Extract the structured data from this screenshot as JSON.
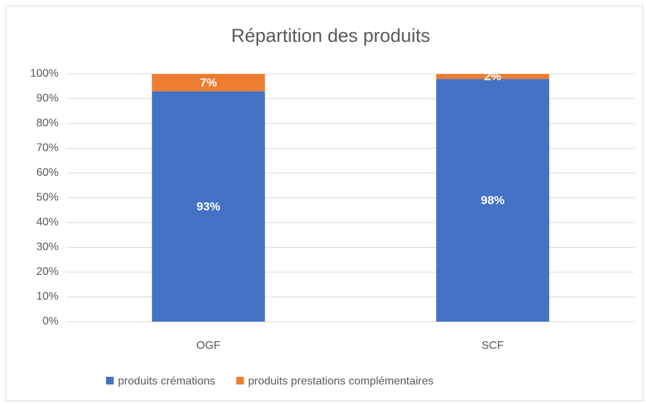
{
  "chart_data": {
    "type": "stacked_bar",
    "title": "Répartition des produits",
    "categories": [
      "OGF",
      "SCF"
    ],
    "series": [
      {
        "name": "produits crémations",
        "color": "#4472c4",
        "values": [
          93,
          98
        ],
        "value_labels": [
          "93%",
          "98%"
        ]
      },
      {
        "name": "produits prestations complémentaires",
        "color": "#ed7d31",
        "values": [
          7,
          2
        ],
        "value_labels": [
          "7%",
          "2%"
        ]
      }
    ],
    "ylim": [
      0,
      100
    ],
    "yticks": [
      {
        "value": 0,
        "label": "0%"
      },
      {
        "value": 10,
        "label": "10%"
      },
      {
        "value": 20,
        "label": "20%"
      },
      {
        "value": 30,
        "label": "30%"
      },
      {
        "value": 40,
        "label": "40%"
      },
      {
        "value": 50,
        "label": "50%"
      },
      {
        "value": 60,
        "label": "60%"
      },
      {
        "value": 70,
        "label": "70%"
      },
      {
        "value": 80,
        "label": "80%"
      },
      {
        "value": 90,
        "label": "90%"
      },
      {
        "value": 100,
        "label": "100%"
      }
    ],
    "grid": true,
    "legend": "bottom"
  }
}
